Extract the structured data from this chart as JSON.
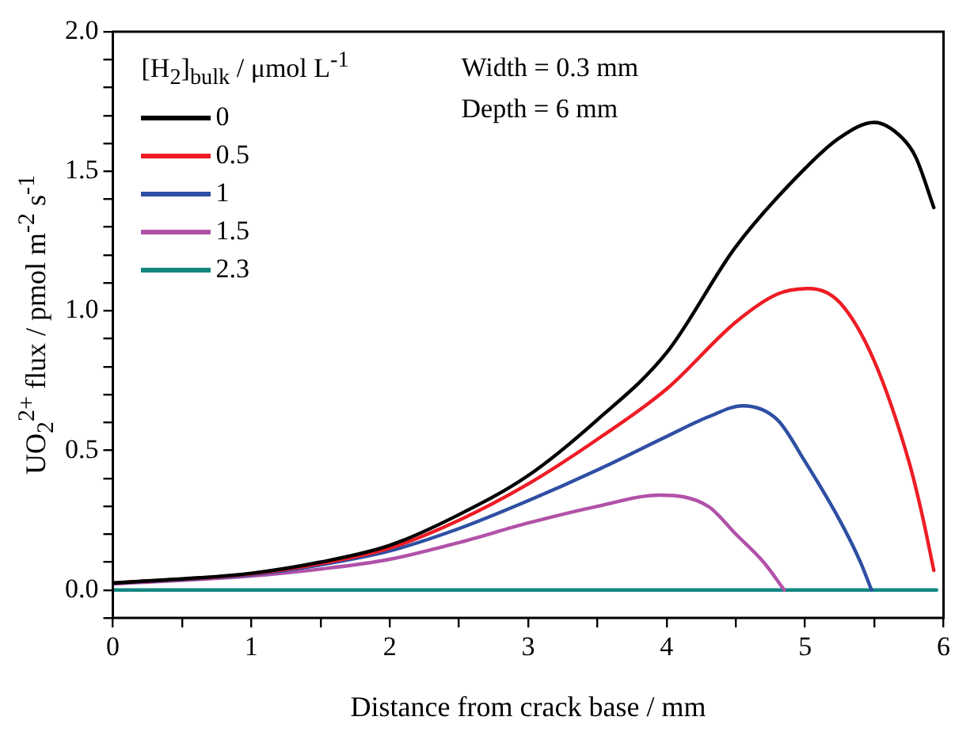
{
  "chart_data": {
    "type": "line",
    "xlabel": "Distance from crack base / mm",
    "ylabel": "UO$_{2}$$^{2+}$ flux / pmol m$^{-2}$ s$^{-1}$",
    "legend_title": "[H$_{2}$]$_{bulk}$ / μmol L$^{-1}$",
    "annotations": [
      "Width = 0.3 mm",
      "Depth = 6 mm"
    ],
    "xlim": [
      0,
      6
    ],
    "xticks": [
      0,
      {
        "value": 0.5,
        "label": null
      },
      1,
      {
        "value": 1.5,
        "label": null
      },
      2,
      {
        "value": 2.5,
        "label": null
      },
      3,
      {
        "value": 3.5,
        "label": null
      },
      4,
      {
        "value": 4.5,
        "label": null
      },
      5,
      {
        "value": 5.5,
        "label": null
      },
      6
    ],
    "ylim": [
      -0.1,
      2.0
    ],
    "yticks": [
      {
        "value": -0.1,
        "label": null
      },
      "0.0",
      {
        "value": 0.1,
        "label": null
      },
      {
        "value": 0.2,
        "label": null
      },
      {
        "value": 0.3,
        "label": null
      },
      {
        "value": 0.4,
        "label": null
      },
      {
        "value": 0.5,
        "label": "0.5"
      },
      {
        "value": 0.6,
        "label": null
      },
      {
        "value": 0.7,
        "label": null
      },
      {
        "value": 0.8,
        "label": null
      },
      {
        "value": 0.9,
        "label": null
      },
      {
        "value": 1.0,
        "label": "1.0"
      },
      {
        "value": 1.1,
        "label": null
      },
      {
        "value": 1.2,
        "label": null
      },
      {
        "value": 1.3,
        "label": null
      },
      {
        "value": 1.4,
        "label": null
      },
      {
        "value": 1.5,
        "label": "1.5"
      },
      {
        "value": 1.6,
        "label": null
      },
      {
        "value": 1.7,
        "label": null
      },
      {
        "value": 1.8,
        "label": null
      },
      {
        "value": 1.9,
        "label": null
      },
      {
        "value": 2.0,
        "label": "2.0"
      }
    ],
    "grid": false,
    "legend": "top left",
    "marker": "none",
    "line_style": "solid",
    "series": [
      {
        "name": "0",
        "color": "#000000",
        "x": [
          0,
          1,
          1.5,
          2,
          2.5,
          3,
          3.5,
          4,
          4.5,
          5,
          5.25,
          5.5,
          5.7,
          5.8,
          5.93
        ],
        "values": [
          0.025,
          0.06,
          0.1,
          0.16,
          0.27,
          0.41,
          0.61,
          0.85,
          1.23,
          1.51,
          1.62,
          1.675,
          1.62,
          1.55,
          1.37
        ]
      },
      {
        "name": "0.5",
        "color": "#ee1c25",
        "x": [
          0,
          1,
          1.5,
          2,
          2.5,
          3,
          3.5,
          4,
          4.5,
          4.8,
          5.03,
          5.25,
          5.5,
          5.75,
          5.85,
          5.93
        ],
        "values": [
          0.025,
          0.058,
          0.095,
          0.15,
          0.25,
          0.38,
          0.54,
          0.72,
          0.96,
          1.06,
          1.08,
          1.03,
          0.82,
          0.46,
          0.26,
          0.07
        ]
      },
      {
        "name": "1",
        "color": "#2e4fa3",
        "x": [
          0,
          1,
          1.5,
          2,
          2.5,
          3,
          3.5,
          4,
          4.3,
          4.55,
          4.8,
          5,
          5.25,
          5.4,
          5.48
        ],
        "values": [
          0.025,
          0.055,
          0.09,
          0.14,
          0.22,
          0.32,
          0.43,
          0.55,
          0.62,
          0.66,
          0.61,
          0.46,
          0.25,
          0.1,
          0.0
        ]
      },
      {
        "name": "1.5",
        "color": "#b152a8",
        "x": [
          0,
          1,
          1.5,
          2,
          2.5,
          3,
          3.5,
          3.95,
          4.3,
          4.5,
          4.7,
          4.85
        ],
        "values": [
          0.022,
          0.05,
          0.075,
          0.11,
          0.17,
          0.24,
          0.3,
          0.34,
          0.3,
          0.2,
          0.1,
          0.0
        ]
      },
      {
        "name": "2.3",
        "color": "#138681",
        "x": [
          0,
          5.95
        ],
        "values": [
          0.0,
          0.0
        ]
      }
    ]
  }
}
